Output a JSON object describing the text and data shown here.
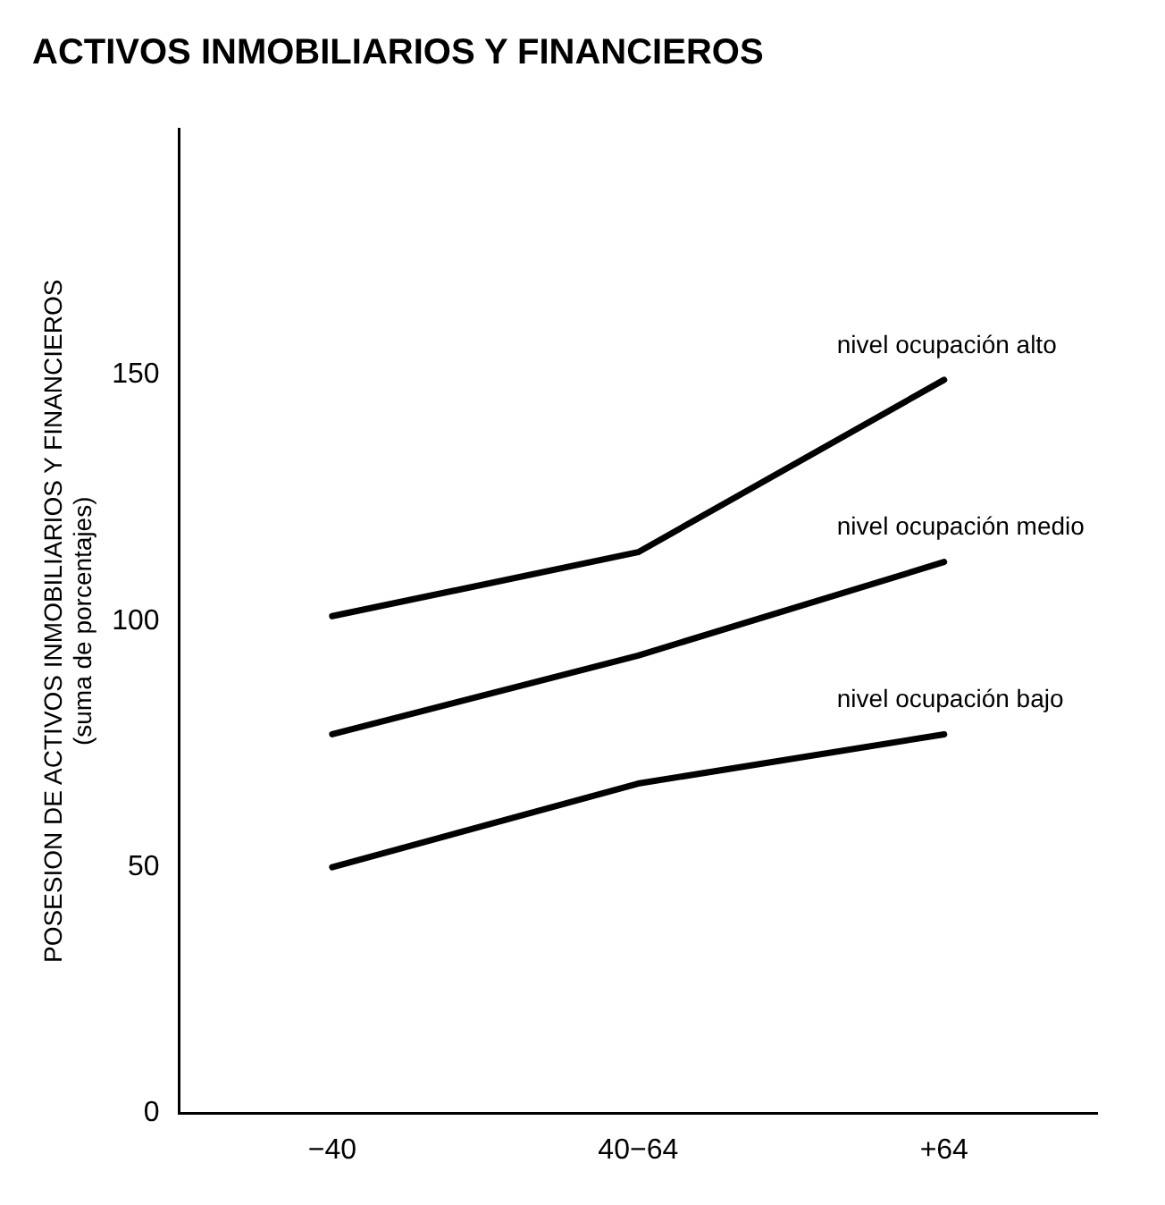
{
  "chart_data": {
    "type": "line",
    "title": "ACTIVOS INMOBILIARIOS Y FINANCIEROS",
    "ylabel": "POSESION DE ACTIVOS INMOBILIARIOS Y FINANCIEROS\n(suma de porcentajes)",
    "categories": [
      "−40",
      "40−64",
      "+64"
    ],
    "series": [
      {
        "name": "nivel ocupación alto",
        "color": "#000000",
        "values": [
          101,
          114,
          149
        ]
      },
      {
        "name": "nivel ocupación medio",
        "color": "#000000",
        "values": [
          77,
          93,
          112
        ]
      },
      {
        "name": "nivel ocupación bajo",
        "color": "#000000",
        "values": [
          50,
          67,
          77
        ]
      }
    ],
    "ylim": [
      0,
      200
    ],
    "yticks": [
      0,
      50,
      100,
      150
    ],
    "grid": false,
    "legend": false,
    "marker": "none",
    "line_style": "solid"
  }
}
